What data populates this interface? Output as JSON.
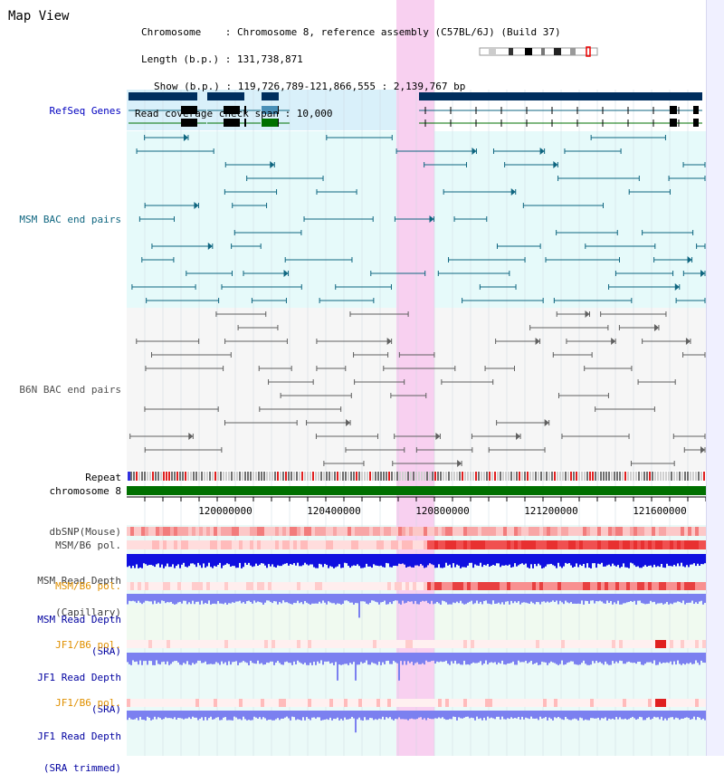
{
  "title": "Map View",
  "info": {
    "lines": [
      "Chromosome    : Chromosome 8, reference assembly (C57BL/6J) (Build 37)",
      "Length (b.p.) : 131,738,871",
      "Show (b.p.) : 119,726,789-121,866,555 : 2,139,767 bp",
      "Read coverage check span : 10,000"
    ]
  },
  "tracks": {
    "refseq": "RefSeq Genes",
    "msm_bac": "MSM BAC end pairs",
    "b6n_bac": "B6N BAC end pairs",
    "repeat": "Repeat",
    "chromosome": "chromosome 8",
    "dbsnp": "dbSNP(Mouse)",
    "msm_b6_pol_1": "MSM/B6 pol.",
    "msm_read_cap_1": "MSM Read Depth",
    "msm_read_cap_2": "(Capillary)",
    "msm_b6_pol_2": "MSM/B6 pol.",
    "msm_read_sra_1": "MSM Read Depth",
    "msm_read_sra_2": "(SRA)",
    "jf1_b6_pol_1": "JF1/B6 pol.",
    "jf1_read_sra_1": "JF1 Read Depth",
    "jf1_read_sra_2": "(SRA)",
    "jf1_b6_pol_2": "JF1/B6 pol.",
    "jf1_read_trim_1": "JF1 Read Depth",
    "jf1_read_trim_2": "(SRA trimmed)"
  },
  "axis": {
    "ticks": [
      "120000000",
      "120400000",
      "120800000",
      "121200000",
      "121600000"
    ]
  },
  "colors": {
    "refseq_dark": "#002e5e",
    "msm_bac": "#0f6680",
    "b6n_bac": "#606060",
    "highlight": "#f8d0f0",
    "chromosome": "#007000",
    "read_depth_cap": "#1010e0",
    "read_depth_sra": "#7b80f0",
    "pol_red": "#e03030",
    "label_blue": "#0000a0",
    "label_orange": "#e09000"
  }
}
